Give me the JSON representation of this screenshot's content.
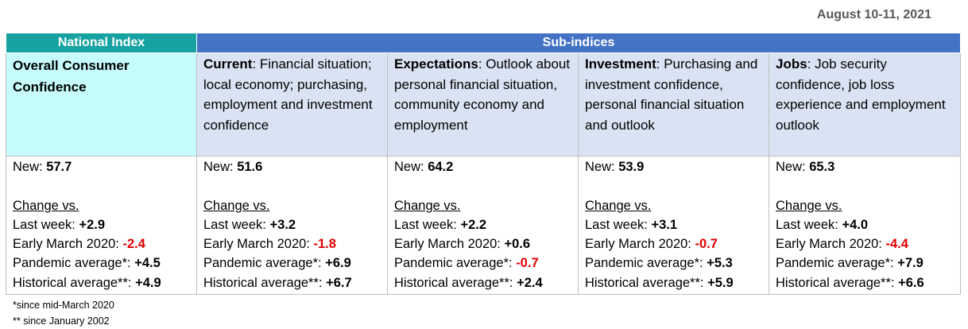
{
  "date": "August 10-11, 2021",
  "headers": {
    "national": "National Index",
    "sub": "Sub-indices"
  },
  "change_vs_label": "Change vs.",
  "row_labels": {
    "new": "New: ",
    "last_week": "Last week: ",
    "early_march": "Early March 2020: ",
    "pandemic_avg": "Pandemic average*: ",
    "historical_avg": "Historical average**: "
  },
  "columns": [
    {
      "title": "Overall Consumer Confidence",
      "desc": "",
      "new": "57.7",
      "last_week": "+2.9",
      "early_march": "-2.4",
      "pandemic_avg": "+4.5",
      "historical_avg": "+4.9"
    },
    {
      "title": "Current",
      "desc": ":  Financial situation; local economy; purchasing, employment and investment confidence",
      "new": "51.6",
      "last_week": "+3.2",
      "early_march": "-1.8",
      "pandemic_avg": "+6.9",
      "historical_avg": "+6.7"
    },
    {
      "title": "Expectations",
      "desc": ": Outlook about personal financial situation, community economy and employment",
      "new": "64.2",
      "last_week": "+2.2",
      "early_march": "+0.6",
      "pandemic_avg": "-0.7",
      "historical_avg": "+2.4"
    },
    {
      "title": "Investment",
      "desc": ": Purchasing and investment confidence, personal financial situation and outlook",
      "new": "53.9",
      "last_week": "+3.1",
      "early_march": "-0.7",
      "pandemic_avg": "+5.3",
      "historical_avg": "+5.9"
    },
    {
      "title": "Jobs",
      "desc": ": Job security confidence, job loss experience and employment outlook",
      "new": "65.3",
      "last_week": "+4.0",
      "early_march": "-4.4",
      "pandemic_avg": "+7.9",
      "historical_avg": "+6.6"
    }
  ],
  "footnotes": [
    "*since mid-March 2020",
    "** since January 2002"
  ],
  "colors": {
    "national_header": "#17a2a2",
    "sub_header": "#4472c4",
    "national_cell": "#c6fcfc",
    "sub_cell": "#dae3f3",
    "negative": "#e00000"
  }
}
